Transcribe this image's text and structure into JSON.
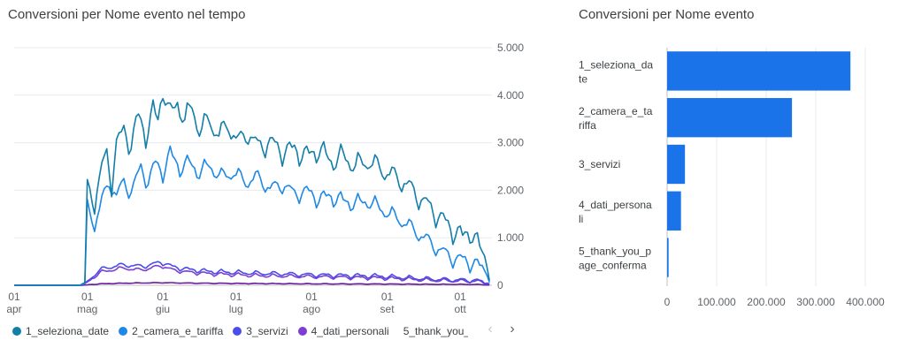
{
  "line_card": {
    "title": "Conversioni per Nome evento nel tempo"
  },
  "bar_card": {
    "title": "Conversioni per Nome evento"
  },
  "legend": {
    "items": [
      {
        "label": "1_seleziona_date",
        "color": "#137ea7"
      },
      {
        "label": "2_camera_e_tariffa",
        "color": "#1e88e5"
      },
      {
        "label": "3_servizi",
        "color": "#4a4de7"
      },
      {
        "label": "4_dati_personali",
        "color": "#7c3fd1"
      },
      {
        "label": "5_thank_you_",
        "color": "#6a1b9a"
      }
    ],
    "prev_icon": "‹",
    "next_icon": "›"
  },
  "chart_data": [
    {
      "type": "line",
      "title": "Conversioni per Nome evento nel tempo",
      "ylim": [
        0,
        5000
      ],
      "y_ticks": [
        0,
        1000,
        2000,
        3000,
        4000,
        5000
      ],
      "y_tick_labels": [
        "0",
        "1.000",
        "2.000",
        "3.000",
        "4.000",
        "5.000"
      ],
      "x_tick_labels": [
        {
          "day": "01",
          "month": "apr",
          "day_index": 0
        },
        {
          "day": "01",
          "month": "mag",
          "day_index": 30
        },
        {
          "day": "01",
          "month": "giu",
          "day_index": 61
        },
        {
          "day": "01",
          "month": "lug",
          "day_index": 91
        },
        {
          "day": "01",
          "month": "ago",
          "day_index": 122
        },
        {
          "day": "01",
          "month": "set",
          "day_index": 153
        },
        {
          "day": "01",
          "month": "ott",
          "day_index": 183
        }
      ],
      "x_range_days": [
        0,
        196
      ],
      "series": [
        {
          "name": "1_seleziona_date",
          "color": "#137ea7",
          "keyframes": [
            [
              0,
              0
            ],
            [
              27,
              0
            ],
            [
              29,
              60
            ],
            [
              30,
              2100
            ],
            [
              33,
              1800
            ],
            [
              36,
              2500
            ],
            [
              38,
              2800
            ],
            [
              40,
              2200
            ],
            [
              42,
              3000
            ],
            [
              45,
              3300
            ],
            [
              48,
              3000
            ],
            [
              51,
              3600
            ],
            [
              54,
              3200
            ],
            [
              57,
              3700
            ],
            [
              59,
              3500
            ],
            [
              61,
              4200
            ],
            [
              64,
              3600
            ],
            [
              67,
              3900
            ],
            [
              70,
              3500
            ],
            [
              73,
              3800
            ],
            [
              76,
              3300
            ],
            [
              80,
              3500
            ],
            [
              84,
              3200
            ],
            [
              88,
              3400
            ],
            [
              92,
              3050
            ],
            [
              96,
              3250
            ],
            [
              100,
              2950
            ],
            [
              105,
              3050
            ],
            [
              110,
              2850
            ],
            [
              115,
              2900
            ],
            [
              120,
              2750
            ],
            [
              125,
              2900
            ],
            [
              130,
              2650
            ],
            [
              135,
              2750
            ],
            [
              140,
              2550
            ],
            [
              145,
              2650
            ],
            [
              150,
              2500
            ],
            [
              155,
              2350
            ],
            [
              160,
              2200
            ],
            [
              165,
              1950
            ],
            [
              170,
              1700
            ],
            [
              175,
              1450
            ],
            [
              180,
              1200
            ],
            [
              184,
              1050
            ],
            [
              187,
              1200
            ],
            [
              190,
              900
            ],
            [
              193,
              650
            ],
            [
              195,
              100
            ]
          ],
          "amplitude": 300,
          "period": 7
        },
        {
          "name": "2_camera_e_tariffa",
          "color": "#1e88e5",
          "keyframes": [
            [
              0,
              0
            ],
            [
              27,
              0
            ],
            [
              29,
              40
            ],
            [
              30,
              1700
            ],
            [
              33,
              1300
            ],
            [
              36,
              1800
            ],
            [
              39,
              2200
            ],
            [
              42,
              1900
            ],
            [
              45,
              2200
            ],
            [
              48,
              2000
            ],
            [
              52,
              2500
            ],
            [
              55,
              2200
            ],
            [
              58,
              2600
            ],
            [
              61,
              2400
            ],
            [
              64,
              2800
            ],
            [
              68,
              2500
            ],
            [
              72,
              2600
            ],
            [
              76,
              2400
            ],
            [
              80,
              2550
            ],
            [
              85,
              2300
            ],
            [
              90,
              2400
            ],
            [
              95,
              2200
            ],
            [
              100,
              2300
            ],
            [
              105,
              2050
            ],
            [
              110,
              2150
            ],
            [
              115,
              1950
            ],
            [
              120,
              2000
            ],
            [
              125,
              1850
            ],
            [
              130,
              1900
            ],
            [
              135,
              1800
            ],
            [
              140,
              1750
            ],
            [
              145,
              1800
            ],
            [
              150,
              1650
            ],
            [
              155,
              1500
            ],
            [
              160,
              1350
            ],
            [
              165,
              1150
            ],
            [
              170,
              950
            ],
            [
              175,
              750
            ],
            [
              180,
              600
            ],
            [
              185,
              550
            ],
            [
              189,
              480
            ],
            [
              193,
              350
            ],
            [
              195,
              60
            ]
          ],
          "amplitude": 220,
          "period": 7
        },
        {
          "name": "3_servizi",
          "color": "#4a4de7",
          "keyframes": [
            [
              0,
              0
            ],
            [
              28,
              0
            ],
            [
              30,
              90
            ],
            [
              35,
              330
            ],
            [
              40,
              400
            ],
            [
              45,
              440
            ],
            [
              50,
              410
            ],
            [
              55,
              420
            ],
            [
              60,
              500
            ],
            [
              65,
              400
            ],
            [
              70,
              350
            ],
            [
              80,
              300
            ],
            [
              90,
              280
            ],
            [
              100,
              260
            ],
            [
              110,
              250
            ],
            [
              120,
              230
            ],
            [
              130,
              220
            ],
            [
              140,
              210
            ],
            [
              150,
              200
            ],
            [
              160,
              170
            ],
            [
              170,
              140
            ],
            [
              180,
              120
            ],
            [
              190,
              110
            ],
            [
              195,
              30
            ]
          ],
          "amplitude": 60,
          "period": 7
        },
        {
          "name": "4_dati_personali",
          "color": "#7c3fd1",
          "keyframes": [
            [
              0,
              0
            ],
            [
              28,
              0
            ],
            [
              30,
              70
            ],
            [
              35,
              270
            ],
            [
              40,
              330
            ],
            [
              45,
              370
            ],
            [
              50,
              330
            ],
            [
              55,
              350
            ],
            [
              60,
              420
            ],
            [
              65,
              330
            ],
            [
              70,
              290
            ],
            [
              80,
              250
            ],
            [
              90,
              230
            ],
            [
              100,
              210
            ],
            [
              110,
              200
            ],
            [
              120,
              190
            ],
            [
              130,
              180
            ],
            [
              140,
              170
            ],
            [
              150,
              160
            ],
            [
              160,
              140
            ],
            [
              170,
              115
            ],
            [
              180,
              100
            ],
            [
              190,
              90
            ],
            [
              195,
              25
            ]
          ],
          "amplitude": 50,
          "period": 7
        },
        {
          "name": "5_thank_you_page_conferma",
          "color": "#6a1b9a",
          "keyframes": [
            [
              0,
              0
            ],
            [
              28,
              0
            ],
            [
              30,
              10
            ],
            [
              35,
              30
            ],
            [
              45,
              45
            ],
            [
              60,
              55
            ],
            [
              75,
              45
            ],
            [
              90,
              40
            ],
            [
              110,
              35
            ],
            [
              130,
              30
            ],
            [
              150,
              28
            ],
            [
              170,
              22
            ],
            [
              190,
              18
            ],
            [
              195,
              5
            ]
          ],
          "amplitude": 8,
          "period": 7
        }
      ]
    },
    {
      "type": "bar",
      "orientation": "horizontal",
      "title": "Conversioni per Nome evento",
      "categories": [
        {
          "line1": "1_seleziona_da",
          "line2": "te"
        },
        {
          "line1": "2_camera_e_ta",
          "line2": "riffa"
        },
        {
          "line1": "3_servizi",
          "line2": ""
        },
        {
          "line1": "4_dati_persona",
          "line2": "li"
        },
        {
          "line1": "5_thank_you_p",
          "line2": "age_conferma"
        }
      ],
      "values": [
        370000,
        252000,
        36000,
        28000,
        3000
      ],
      "xlim": [
        0,
        400000
      ],
      "x_ticks": [
        0,
        100000,
        200000,
        300000,
        400000
      ],
      "x_tick_labels": [
        "0",
        "100.000",
        "200.000",
        "300.000",
        "400.000"
      ],
      "color": "#1a73e8"
    }
  ]
}
